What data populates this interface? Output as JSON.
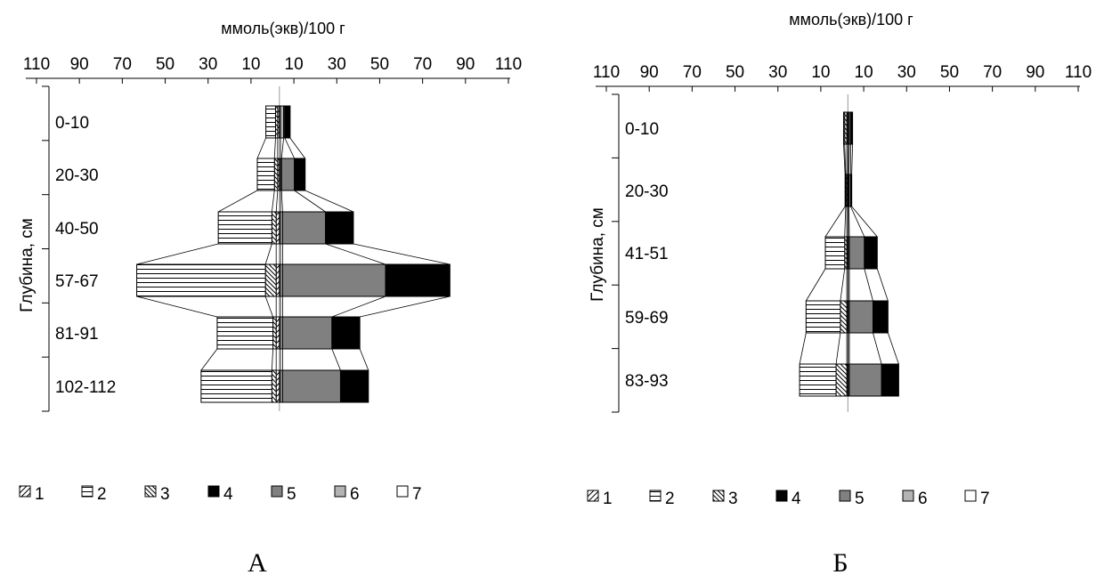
{
  "chart_data": [
    {
      "type": "bar",
      "panel_label": "А",
      "title": "ммоль(экв)/100 г",
      "ylabel": "Глубина, см",
      "x_tick_labels": [
        "110",
        "90",
        "70",
        "50",
        "30",
        "10",
        "10",
        "30",
        "50",
        "70",
        "90",
        "110"
      ],
      "xlim": [
        -110,
        110
      ],
      "categories": [
        "0-10",
        "20-30",
        "40-50",
        "57-67",
        "81-91",
        "102-112"
      ],
      "series": [
        {
          "name": "1",
          "side": "left",
          "values": [
            0.8,
            0.8,
            1.5,
            1.5,
            1.5,
            1.5
          ]
        },
        {
          "name": "2",
          "side": "left",
          "values": [
            4.5,
            8,
            25,
            60,
            26,
            33
          ]
        },
        {
          "name": "3",
          "side": "left",
          "values": [
            1,
            1.5,
            2,
            5,
            1.5,
            2
          ]
        },
        {
          "name": "4",
          "side": "right",
          "values": [
            2.5,
            5,
            13,
            30,
            13,
            13
          ]
        },
        {
          "name": "5",
          "side": "right",
          "values": [
            0.5,
            6,
            20,
            48,
            23,
            27
          ]
        },
        {
          "name": "6",
          "side": "right",
          "values": [
            1.5,
            0.5,
            1,
            1,
            1,
            1
          ]
        },
        {
          "name": "7",
          "side": "right",
          "values": [
            0.5,
            0.5,
            0.5,
            0.5,
            0.5,
            0.5
          ]
        }
      ]
    },
    {
      "type": "bar",
      "panel_label": "Б",
      "title": "ммоль(экв)/100 г",
      "ylabel": "Глубина, см",
      "x_tick_labels": [
        "110",
        "90",
        "70",
        "50",
        "30",
        "10",
        "10",
        "30",
        "50",
        "70",
        "90",
        "110"
      ],
      "xlim": [
        -110,
        110
      ],
      "categories": [
        "0-10",
        "20-30",
        "41-51",
        "59-69",
        "83-93"
      ],
      "series": [
        {
          "name": "1",
          "side": "left",
          "values": [
            0.5,
            0.5,
            0.5,
            0.5,
            0.5
          ]
        },
        {
          "name": "2",
          "side": "left",
          "values": [
            0.5,
            0.3,
            9,
            16,
            17
          ]
        },
        {
          "name": "3",
          "side": "left",
          "values": [
            1,
            0.5,
            1,
            3,
            5
          ]
        },
        {
          "name": "4",
          "side": "right",
          "values": [
            0.8,
            0.5,
            6,
            7,
            8
          ]
        },
        {
          "name": "5",
          "side": "right",
          "values": [
            0.7,
            0.8,
            7,
            11,
            15
          ]
        },
        {
          "name": "6",
          "side": "right",
          "values": [
            0.5,
            0.3,
            0.5,
            0.5,
            0.5
          ]
        },
        {
          "name": "7",
          "side": "right",
          "values": [
            0.2,
            0.2,
            0.2,
            0.2,
            0.2
          ]
        }
      ]
    }
  ],
  "legend": {
    "items": [
      {
        "label": "1",
        "pattern": "diag-up"
      },
      {
        "label": "2",
        "pattern": "horizontal"
      },
      {
        "label": "3",
        "pattern": "diag-down"
      },
      {
        "label": "4",
        "pattern": "solid-black"
      },
      {
        "label": "5",
        "pattern": "dark-gray"
      },
      {
        "label": "6",
        "pattern": "light-gray"
      },
      {
        "label": "7",
        "pattern": "white"
      }
    ]
  },
  "colors": {
    "series4": "#000000",
    "series5": "#808080",
    "series6": "#b3b3b3",
    "series7": "#ffffff",
    "outline": "#000000"
  }
}
